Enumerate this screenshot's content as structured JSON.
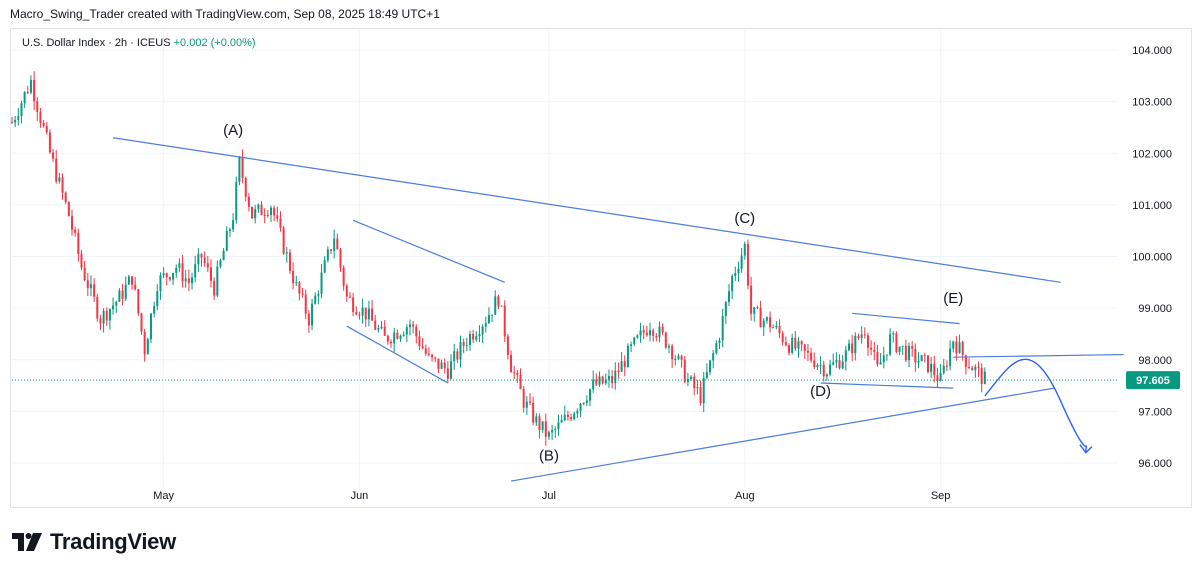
{
  "header": {
    "text": "Macro_Swing_Trader created with TradingView.com, Sep 08, 2025 18:49 UTC+1"
  },
  "symbol": {
    "name": "U.S. Dollar Index · 2h · ICEUS",
    "change": "+0.002 (+0.00%)"
  },
  "footer": {
    "logo_text": "TradingView",
    "logo_icon": "tradingview-logo-icon"
  },
  "colors": {
    "up": "#089981",
    "down": "#f23645",
    "drawing": "#4a7de0",
    "price_tag": "#089981"
  },
  "chart_data": {
    "type": "candlestick",
    "ylim": [
      95.5,
      104.5
    ],
    "yticks": [
      "104.000",
      "103.000",
      "102.000",
      "101.000",
      "100.000",
      "99.000",
      "98.000",
      "97.000",
      "96.000"
    ],
    "xticks": [
      "May",
      "Jun",
      "Jul",
      "Aug",
      "Sep"
    ],
    "last_price": "97.605",
    "price_path": [
      [
        "Apr 7",
        102.6
      ],
      [
        "Apr 10",
        103.4
      ],
      [
        "Apr 13",
        102.0
      ],
      [
        "Apr 16",
        100.8
      ],
      [
        "Apr 18",
        99.8
      ],
      [
        "Apr 21",
        98.8
      ],
      [
        "Apr 24",
        99.2
      ],
      [
        "Apr 26",
        99.6
      ],
      [
        "Apr 28",
        98.2
      ],
      [
        "Apr 30",
        99.5
      ],
      [
        "May 3",
        99.8
      ],
      [
        "May 5",
        99.5
      ],
      [
        "May 7",
        100.0
      ],
      [
        "May 9",
        99.4
      ],
      [
        "May 12",
        100.8
      ],
      [
        "May 13",
        101.8
      ],
      [
        "May 15",
        100.8
      ],
      [
        "May 18",
        101.0
      ],
      [
        "May 20",
        100.2
      ],
      [
        "May 22",
        99.4
      ],
      [
        "May 24",
        98.8
      ],
      [
        "May 26",
        99.6
      ],
      [
        "May 28",
        100.4
      ],
      [
        "May 30",
        99.2
      ],
      [
        "Jun 2",
        98.9
      ],
      [
        "Jun 5",
        98.4
      ],
      [
        "Jun 9",
        98.7
      ],
      [
        "Jun 12",
        98.0
      ],
      [
        "Jun 15",
        97.8
      ],
      [
        "Jun 18",
        98.4
      ],
      [
        "Jun 21",
        98.8
      ],
      [
        "Jun 23",
        99.2
      ],
      [
        "Jun 25",
        97.9
      ],
      [
        "Jun 27",
        97.2
      ],
      [
        "Jun 29",
        96.8
      ],
      [
        "Jul 1",
        96.5
      ],
      [
        "Jul 4",
        96.9
      ],
      [
        "Jul 8",
        97.5
      ],
      [
        "Jul 11",
        97.6
      ],
      [
        "Jul 14",
        98.2
      ],
      [
        "Jul 17",
        98.7
      ],
      [
        "Jul 20",
        98.3
      ],
      [
        "Jul 23",
        97.6
      ],
      [
        "Jul 25",
        97.3
      ],
      [
        "Jul 28",
        98.5
      ],
      [
        "Jul 30",
        99.6
      ],
      [
        "Aug 1",
        100.2
      ],
      [
        "Aug 2",
        98.9
      ],
      [
        "Aug 5",
        98.7
      ],
      [
        "Aug 8",
        98.3
      ],
      [
        "Aug 12",
        98.0
      ],
      [
        "Aug 14",
        97.8
      ],
      [
        "Aug 17",
        98.1
      ],
      [
        "Aug 20",
        98.6
      ],
      [
        "Aug 22",
        97.8
      ],
      [
        "Aug 24",
        98.4
      ],
      [
        "Aug 27",
        98.1
      ],
      [
        "Aug 30",
        97.9
      ],
      [
        "Sep 1",
        97.6
      ],
      [
        "Sep 3",
        98.4
      ],
      [
        "Sep 5",
        98.0
      ],
      [
        "Sep 8",
        97.6
      ]
    ],
    "annotations": [
      {
        "label": "(A)",
        "date": "May 12",
        "price": 102.35
      },
      {
        "label": "(B)",
        "date": "Jul 1",
        "price": 96.05
      },
      {
        "label": "(C)",
        "date": "Aug 1",
        "price": 100.65
      },
      {
        "label": "(D)",
        "date": "Aug 13",
        "price": 97.3
      },
      {
        "label": "(E)",
        "date": "Sep 3",
        "price": 99.1
      }
    ],
    "trendlines": [
      {
        "from": [
          "Apr 23",
          102.3
        ],
        "to": [
          "Sep 20",
          99.5
        ]
      },
      {
        "from": [
          "Jun 25",
          95.65
        ],
        "to": [
          "Sep 19",
          97.45
        ]
      },
      {
        "from": [
          "May 31",
          100.7
        ],
        "to": [
          "Jun 24",
          99.5
        ]
      },
      {
        "from": [
          "May 30",
          98.65
        ],
        "to": [
          "Jun 15",
          97.55
        ]
      },
      {
        "from": [
          "Aug 18",
          98.9
        ],
        "to": [
          "Sep 4",
          98.7
        ]
      },
      {
        "from": [
          "Aug 13",
          97.55
        ],
        "to": [
          "Sep 3",
          97.45
        ]
      },
      {
        "from": [
          "Sep 3",
          98.05
        ],
        "to": [
          "Sep 30",
          98.1
        ]
      }
    ],
    "projection": [
      [
        "Sep 8",
        97.3
      ],
      [
        "Sep 12",
        97.9
      ],
      [
        "Sep 15",
        98.0
      ],
      [
        "Sep 20",
        97.2
      ],
      [
        "Sep 24",
        96.2
      ]
    ]
  }
}
